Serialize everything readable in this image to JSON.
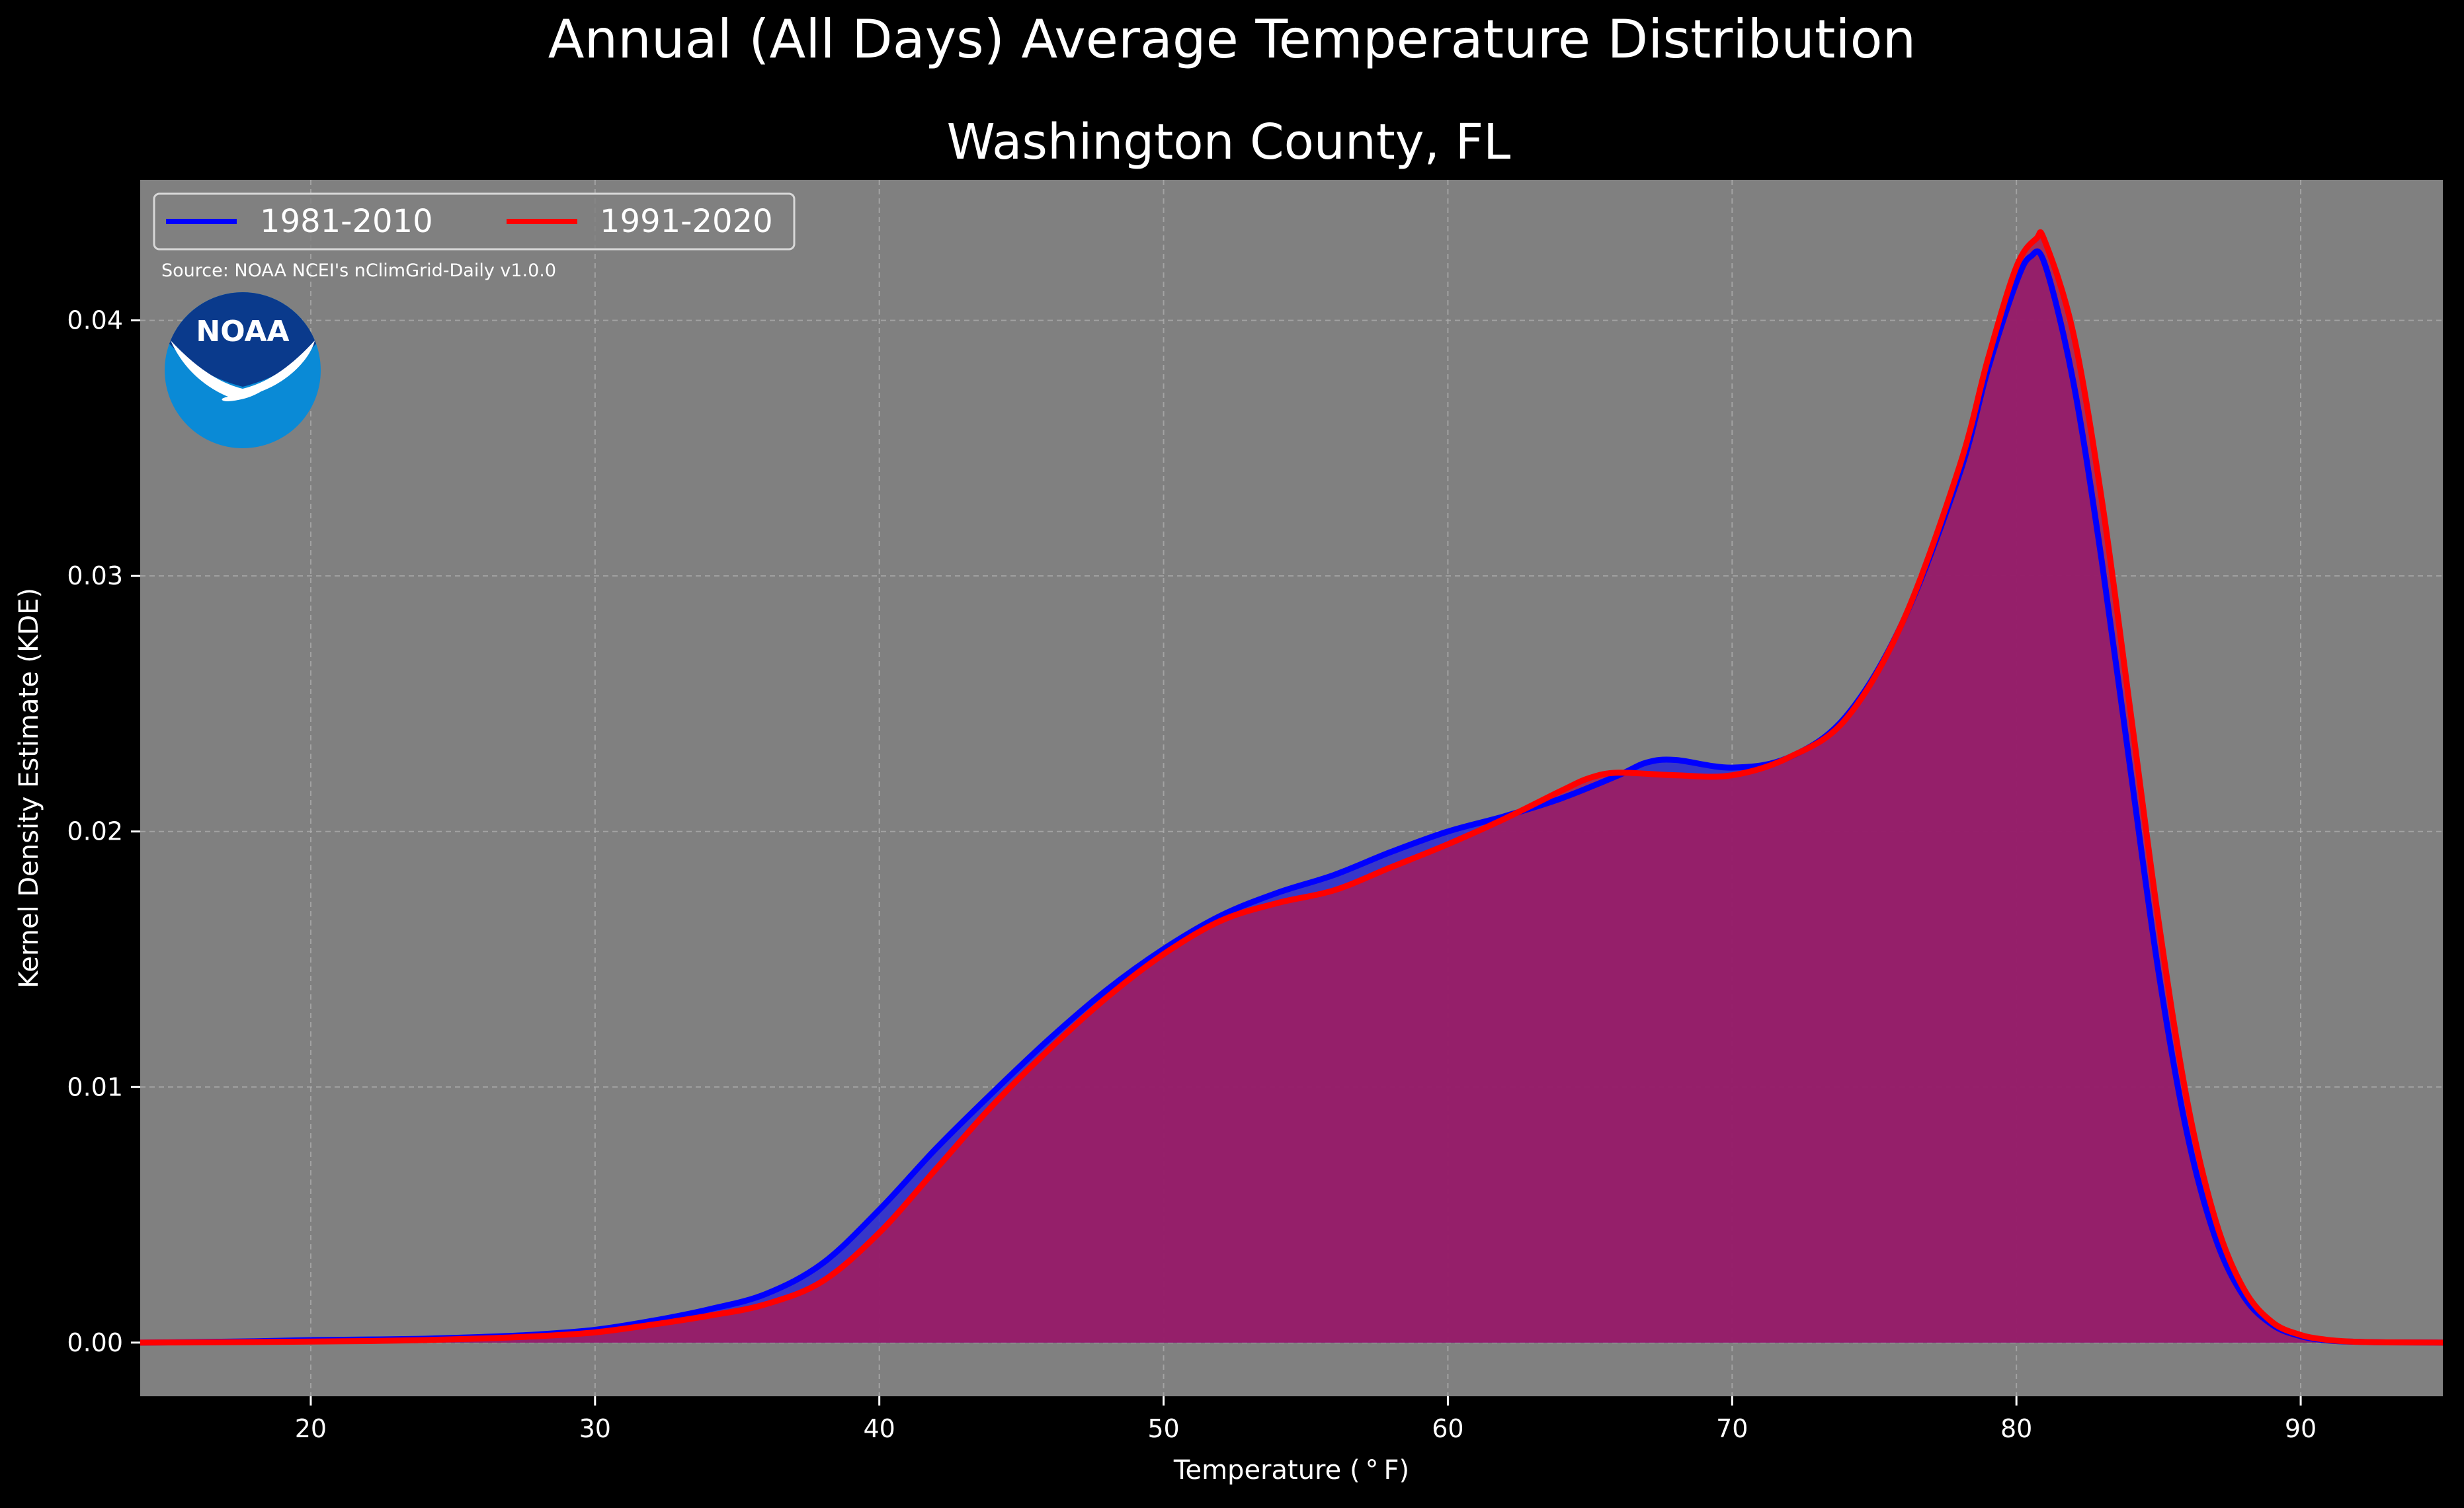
{
  "chart_data": {
    "type": "area",
    "title": "Annual (All Days) Average Temperature Distribution",
    "subtitle": "Washington County, FL",
    "xlabel": "Temperature ($^\\circ$F)",
    "xlabel_display": "Temperature ( ° F)",
    "ylabel": "Kernel Density Estimate (KDE)",
    "xlim": [
      14,
      95
    ],
    "ylim": [
      -0.0021,
      0.0455
    ],
    "x_ticks": [
      20,
      30,
      40,
      50,
      60,
      70,
      80,
      90
    ],
    "x_tick_labels": [
      "20",
      "30",
      "40",
      "50",
      "60",
      "70",
      "80",
      "90"
    ],
    "y_ticks": [
      0.0,
      0.01,
      0.02,
      0.03,
      0.04
    ],
    "y_tick_labels": [
      "0.00",
      "0.01",
      "0.02",
      "0.03",
      "0.04"
    ],
    "grid": true,
    "legend_position": "top-left",
    "source_text": "Source: NOAA NCEI's nClimGrid-Daily v1.0.0",
    "logo_text": "NOAA",
    "colors": {
      "background": "#000000",
      "plot_background": "#808080",
      "text": "#ffffff",
      "grid": "#b0b0b0",
      "blue_series": "#0000ff",
      "blue_fill": "#2a2ad6",
      "red_series": "#ff0000",
      "overlap_fill": "#9d1f5c",
      "logo_blue_dark": "#0a3a8c",
      "logo_blue_light": "#0a8ad6"
    },
    "series": [
      {
        "name": "1981-2010",
        "color": "#0000ff",
        "x": [
          14,
          16,
          18,
          20,
          22,
          24,
          26,
          28,
          30,
          32,
          34,
          36,
          38,
          40,
          42,
          44,
          46,
          48,
          50,
          52,
          54,
          56,
          58,
          60,
          62,
          64,
          66,
          67,
          68,
          70,
          72,
          74,
          76,
          78,
          79,
          80,
          80.5,
          81,
          82,
          83,
          84,
          85,
          86,
          87,
          88,
          89,
          90,
          91,
          92,
          93,
          95
        ],
        "values": [
          0.0,
          2e-05,
          5e-05,
          0.0001,
          0.00012,
          0.00015,
          0.00022,
          0.00032,
          0.0005,
          0.00085,
          0.0013,
          0.0019,
          0.0031,
          0.0052,
          0.0076,
          0.0098,
          0.0119,
          0.0138,
          0.0154,
          0.0167,
          0.0176,
          0.0183,
          0.0192,
          0.02,
          0.0206,
          0.0213,
          0.0222,
          0.0227,
          0.0228,
          0.0225,
          0.0229,
          0.0245,
          0.0282,
          0.034,
          0.0381,
          0.0415,
          0.0425,
          0.0422,
          0.0376,
          0.0306,
          0.0225,
          0.0145,
          0.0082,
          0.0041,
          0.0018,
          0.0007,
          0.00025,
          8e-05,
          3e-05,
          1e-05,
          0.0
        ]
      },
      {
        "name": "1991-2020",
        "color": "#ff0000",
        "x": [
          14,
          16,
          18,
          20,
          22,
          24,
          26,
          28,
          30,
          32,
          34,
          36,
          38,
          40,
          42,
          44,
          46,
          48,
          50,
          52,
          54,
          56,
          58,
          60,
          62,
          64,
          65,
          66,
          68,
          70,
          72,
          74,
          76,
          78,
          79,
          80,
          80.7,
          81,
          82,
          83,
          84,
          85,
          86,
          87,
          88,
          89,
          90,
          91,
          92,
          93,
          95
        ],
        "values": [
          0.0,
          1e-05,
          2e-05,
          4e-05,
          6e-05,
          0.0001,
          0.00016,
          0.00025,
          0.0004,
          0.0007,
          0.00105,
          0.0015,
          0.0024,
          0.0043,
          0.0068,
          0.0093,
          0.0115,
          0.0135,
          0.0152,
          0.0165,
          0.0172,
          0.0177,
          0.0186,
          0.0195,
          0.0205,
          0.0216,
          0.0221,
          0.0223,
          0.0222,
          0.0222,
          0.0229,
          0.0244,
          0.0282,
          0.0343,
          0.0385,
          0.0421,
          0.0432,
          0.0431,
          0.0395,
          0.033,
          0.0248,
          0.0165,
          0.0095,
          0.0048,
          0.0021,
          0.0008,
          0.0003,
          0.0001,
          3e-05,
          1e-05,
          0.0
        ]
      }
    ]
  }
}
